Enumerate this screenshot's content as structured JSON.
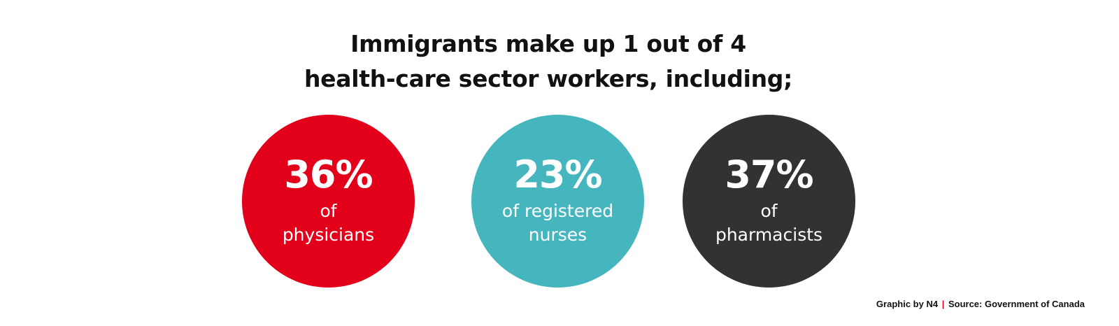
{
  "headline": {
    "line1": "Immigrants make up 1 out of 4",
    "line2": "health-care sector workers, including;"
  },
  "stats": [
    {
      "value": "36%",
      "desc_line1": "of",
      "desc_line2": "physicians",
      "color": "#e2001a"
    },
    {
      "value": "23%",
      "desc_line1": "of registered",
      "desc_line2": "nurses",
      "color": "#45b5be"
    },
    {
      "value": "37%",
      "desc_line1": "of",
      "desc_line2": "pharmacists",
      "color": "#323232"
    }
  ],
  "credit": {
    "graphic_by": "Graphic by N4",
    "separator": "|",
    "source": "Source: Government of Canada",
    "separator_color": "#e2001a"
  }
}
